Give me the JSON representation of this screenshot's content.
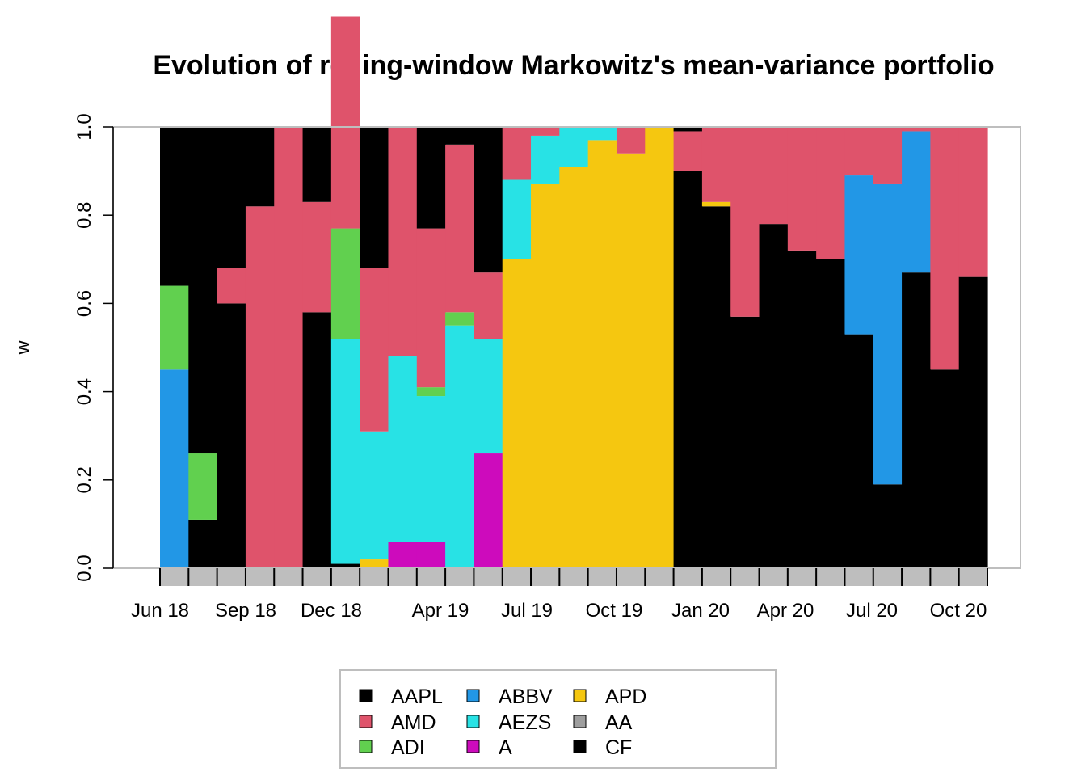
{
  "chart_data": {
    "type": "area",
    "title": "Evolution of rolling-window Markowitz's mean-variance portfolio",
    "xlabel": "",
    "ylabel": "w",
    "ylim": [
      0,
      1
    ],
    "y_ticks": [
      "0.0",
      "0.2",
      "0.4",
      "0.6",
      "0.8",
      "1.0"
    ],
    "x_ticks": [
      "Jun 18",
      "Sep 18",
      "Dec 18",
      "Apr 19",
      "Jul 19",
      "Oct 19",
      "Jan 20",
      "Apr 20",
      "Jul 20",
      "Oct 20"
    ],
    "stack_order": [
      "CF",
      "AA",
      "APD",
      "A",
      "AEZS",
      "ABBV",
      "ADI",
      "AMD",
      "AAPL"
    ],
    "x": [
      "Jun 18",
      "Jul 18",
      "Aug 18",
      "Sep 18",
      "Oct 18",
      "Nov 18",
      "Dec 18",
      "Jan 19",
      "Feb 19",
      "Mar 19",
      "Apr 19",
      "May 19",
      "Jun 19",
      "Jul 19",
      "Aug 19",
      "Sep 19",
      "Oct 19",
      "Nov 19",
      "Dec 19",
      "Jan 20",
      "Feb 20",
      "Mar 20",
      "Apr 20",
      "May 20",
      "Jun 20",
      "Jul 20",
      "Aug 20",
      "Sep 20",
      "Oct 20"
    ],
    "series": [
      {
        "name": "CF",
        "color": "#000000",
        "values": [
          0,
          0.11,
          0.6,
          0,
          0,
          0.58,
          0.01,
          0,
          0,
          0,
          0,
          0,
          0,
          0,
          0,
          0,
          0,
          0,
          0.9,
          0.82,
          0.57,
          0.78,
          0.72,
          0.7,
          0.53,
          0.19,
          0.67,
          0.45,
          0.66
        ]
      },
      {
        "name": "AA",
        "color": "#9E9E9E",
        "values": [
          0,
          0,
          0,
          0,
          0,
          0,
          0,
          0,
          0,
          0,
          0,
          0,
          0,
          0,
          0,
          0,
          0,
          0,
          0,
          0,
          0,
          0,
          0,
          0,
          0,
          0,
          0,
          0,
          0
        ]
      },
      {
        "name": "APD",
        "color": "#F5C710",
        "values": [
          0,
          0,
          0,
          0,
          0,
          0,
          0,
          0.02,
          0,
          0,
          0,
          0,
          0.7,
          0.87,
          0.91,
          0.97,
          0.94,
          1.0,
          0,
          0.01,
          0,
          0,
          0,
          0,
          0,
          0,
          0,
          0,
          0
        ]
      },
      {
        "name": "A",
        "color": "#CD0BBC",
        "values": [
          0,
          0,
          0,
          0,
          0,
          0,
          0,
          0,
          0.06,
          0.06,
          0,
          0.26,
          0,
          0,
          0,
          0,
          0,
          0,
          0,
          0,
          0,
          0,
          0,
          0,
          0,
          0,
          0,
          0,
          0
        ]
      },
      {
        "name": "AEZS",
        "color": "#28E2E5",
        "values": [
          0,
          0,
          0,
          0,
          0,
          0,
          0.51,
          0.29,
          0.42,
          0.33,
          0.55,
          0.26,
          0.18,
          0.11,
          0.09,
          0.03,
          0,
          0,
          0,
          0,
          0,
          0,
          0,
          0,
          0,
          0,
          0,
          0,
          0
        ]
      },
      {
        "name": "ABBV",
        "color": "#2297E6",
        "values": [
          0.45,
          0,
          0,
          0,
          0,
          0,
          0,
          0,
          0,
          0,
          0,
          0,
          0,
          0,
          0,
          0,
          0,
          0,
          0,
          0,
          0,
          0,
          0,
          0,
          0.36,
          0.68,
          0.32,
          0,
          0
        ]
      },
      {
        "name": "ADI",
        "color": "#61D04F",
        "values": [
          0.19,
          0.15,
          0,
          0,
          0,
          0,
          0.25,
          0,
          0,
          0.02,
          0.03,
          0,
          0,
          0,
          0,
          0,
          0,
          0,
          0,
          0,
          0,
          0,
          0,
          0,
          0,
          0,
          0,
          0,
          0
        ]
      },
      {
        "name": "AMD",
        "color": "#DF536B",
        "values": [
          0,
          0,
          0.08,
          0.82,
          1.0,
          0.25,
          0.48,
          0.37,
          0.52,
          0.36,
          0.38,
          0.15,
          0.12,
          0.02,
          0,
          0,
          0.06,
          0,
          0.09,
          0.17,
          0.43,
          0.22,
          0.28,
          0.3,
          0.11,
          0.13,
          0.01,
          0.55,
          0.34
        ]
      },
      {
        "name": "AAPL",
        "color": "#000000",
        "values": [
          0.36,
          0.74,
          0.32,
          0.18,
          0,
          0.17,
          0,
          0.32,
          0,
          0.23,
          0.04,
          0.33,
          0,
          0,
          0,
          0,
          0,
          0,
          0.01,
          0,
          0,
          0,
          0,
          0,
          0,
          0,
          0,
          0,
          0
        ]
      }
    ],
    "legend": {
      "position": "bottom",
      "entries": [
        {
          "name": "AAPL",
          "color": "#000000"
        },
        {
          "name": "AMD",
          "color": "#DF536B"
        },
        {
          "name": "ADI",
          "color": "#61D04F"
        },
        {
          "name": "ABBV",
          "color": "#2297E6"
        },
        {
          "name": "AEZS",
          "color": "#28E2E5"
        },
        {
          "name": "A",
          "color": "#CD0BBC"
        },
        {
          "name": "APD",
          "color": "#F5C710"
        },
        {
          "name": "AA",
          "color": "#9E9E9E"
        },
        {
          "name": "CF",
          "color": "#000000"
        }
      ]
    },
    "grid": false
  }
}
